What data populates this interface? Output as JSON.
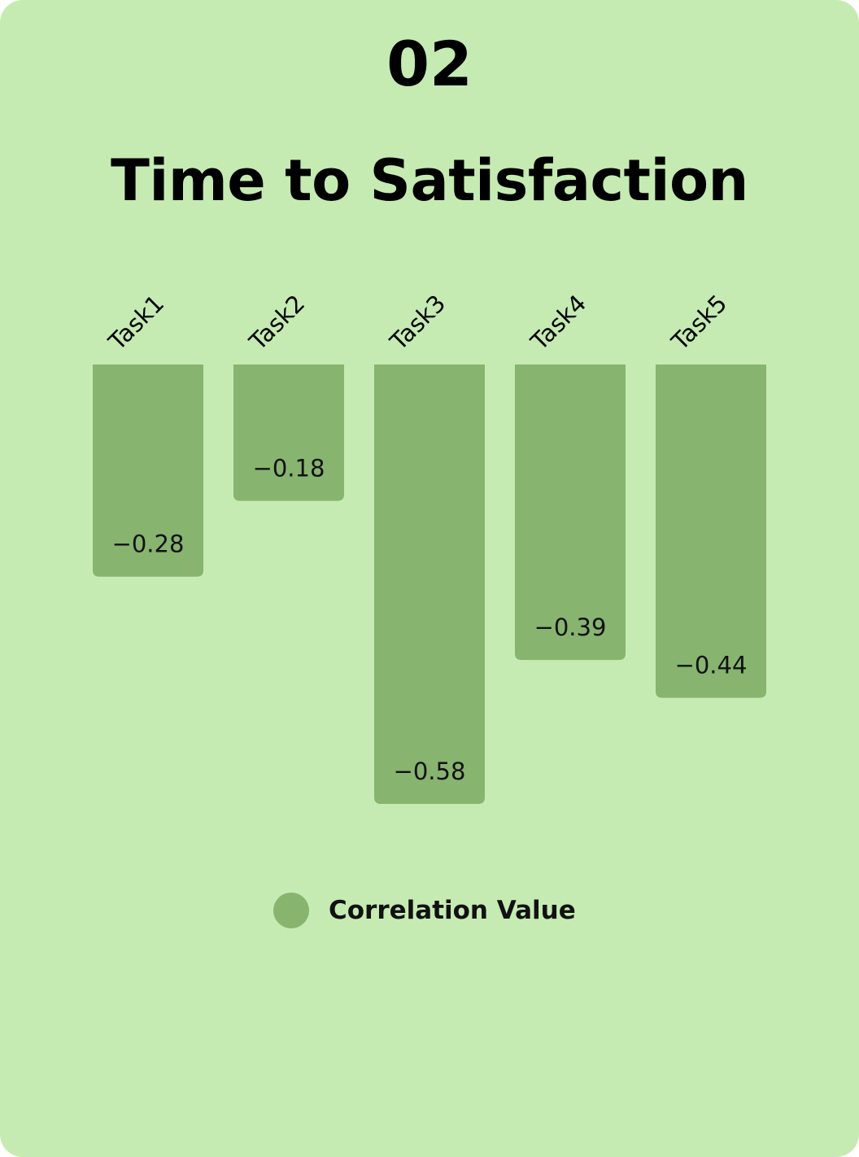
{
  "card": {
    "number": "02",
    "title": "Time to Satisfaction"
  },
  "colors": {
    "background": "#c5ebb3",
    "bar": "#87b46f",
    "text": "#000000"
  },
  "chart_data": {
    "type": "bar",
    "title": "Time to Satisfaction",
    "categories": [
      "Task1",
      "Task2",
      "Task3",
      "Task4",
      "Task5"
    ],
    "series": [
      {
        "name": "Correlation Value",
        "values": [
          -0.28,
          -0.18,
          -0.58,
          -0.39,
          -0.44
        ],
        "labels": [
          "−0.28",
          "−0.18",
          "−0.58",
          "−0.39",
          "−0.44"
        ]
      }
    ],
    "xlabel": "",
    "ylabel": "",
    "ylim": [
      -0.58,
      0
    ],
    "grid": false,
    "legend": "bottom-center",
    "x_axis_position": "top"
  }
}
